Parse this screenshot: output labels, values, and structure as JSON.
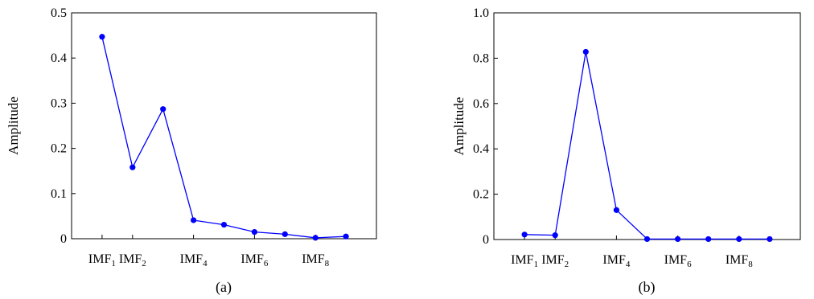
{
  "chart_data": [
    {
      "type": "line",
      "caption": "(a)",
      "ylabel": "Amplitude",
      "xlabel": "",
      "ylim": [
        0,
        0.5
      ],
      "yticks": [
        0,
        0.1,
        0.2,
        0.3,
        0.4,
        0.5
      ],
      "ytick_labels": [
        "0",
        "0.1",
        "0.2",
        "0.3",
        "0.4",
        "0.5"
      ],
      "xlim": [
        0,
        10
      ],
      "xticks": [
        {
          "base": "IMF",
          "sub": "1",
          "x": 1
        },
        {
          "base": "IMF",
          "sub": "2",
          "x": 2
        },
        {
          "base": "IMF",
          "sub": "4",
          "x": 4
        },
        {
          "base": "IMF",
          "sub": "6",
          "x": 6
        },
        {
          "base": "IMF",
          "sub": "8",
          "x": 8
        }
      ],
      "x": [
        1,
        2,
        3,
        4,
        5,
        6,
        7,
        8,
        9
      ],
      "values": [
        0.447,
        0.158,
        0.287,
        0.041,
        0.031,
        0.015,
        0.01,
        0.002,
        0.005
      ],
      "color": "#0000ff",
      "grid": false
    },
    {
      "type": "line",
      "caption": "(b)",
      "ylabel": "Amplitude",
      "xlabel": "",
      "ylim": [
        0,
        1.0
      ],
      "yticks": [
        0,
        0.2,
        0.4,
        0.6,
        0.8,
        1.0
      ],
      "ytick_labels": [
        "0",
        "0.2",
        "0.4",
        "0.6",
        "0.8",
        "1.0"
      ],
      "xlim": [
        0,
        10
      ],
      "xticks": [
        {
          "base": "IMF",
          "sub": "1",
          "x": 1
        },
        {
          "base": "IMF",
          "sub": "2",
          "x": 2
        },
        {
          "base": "IMF",
          "sub": "4",
          "x": 4
        },
        {
          "base": "IMF",
          "sub": "6",
          "x": 6
        },
        {
          "base": "IMF",
          "sub": "8",
          "x": 8
        }
      ],
      "x": [
        1,
        2,
        3,
        4,
        5,
        6,
        7,
        8,
        9
      ],
      "values": [
        0.022,
        0.019,
        0.828,
        0.13,
        0.002,
        0.002,
        0.002,
        0.002,
        0.002
      ],
      "color": "#0000ff",
      "grid": false
    }
  ]
}
